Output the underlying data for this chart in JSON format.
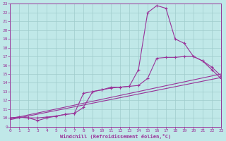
{
  "xlabel": "Windchill (Refroidissement éolien,°C)",
  "xlim": [
    0,
    23
  ],
  "ylim": [
    9,
    23
  ],
  "x_ticks": [
    0,
    1,
    2,
    3,
    4,
    5,
    6,
    7,
    8,
    9,
    10,
    11,
    12,
    13,
    14,
    15,
    16,
    17,
    18,
    19,
    20,
    21,
    22,
    23
  ],
  "y_ticks": [
    9,
    10,
    11,
    12,
    13,
    14,
    15,
    16,
    17,
    18,
    19,
    20,
    21,
    22,
    23
  ],
  "bg_color": "#c0e8e8",
  "grid_color": "#a0cccc",
  "line_color": "#993399",
  "line1_x": [
    0,
    1,
    2,
    3,
    4,
    5,
    6,
    7,
    8,
    9,
    10,
    11,
    12,
    13,
    14,
    15,
    16,
    17,
    18,
    19,
    20,
    21,
    22,
    23
  ],
  "line1_y": [
    10.0,
    10.1,
    10.0,
    9.7,
    10.0,
    10.2,
    10.4,
    10.5,
    11.2,
    13.0,
    13.2,
    13.5,
    13.5,
    13.6,
    15.5,
    22.0,
    22.8,
    22.5,
    19.0,
    18.5,
    17.0,
    16.5,
    15.5,
    14.5
  ],
  "line2_x": [
    0,
    1,
    2,
    3,
    4,
    5,
    6,
    7,
    8,
    9,
    10,
    11,
    12,
    13,
    14,
    15,
    16,
    17,
    18,
    19,
    20,
    21,
    22,
    23
  ],
  "line2_y": [
    10.0,
    10.1,
    10.0,
    10.0,
    10.1,
    10.2,
    10.4,
    10.5,
    12.8,
    13.0,
    13.2,
    13.4,
    13.5,
    13.6,
    13.7,
    14.5,
    16.8,
    16.9,
    16.9,
    17.0,
    17.0,
    16.5,
    15.8,
    14.8
  ],
  "line3_x": [
    0,
    23
  ],
  "line3_y": [
    9.8,
    14.6
  ],
  "line4_x": [
    0,
    23
  ],
  "line4_y": [
    9.9,
    15.0
  ],
  "figwidth": 3.2,
  "figheight": 2.0,
  "dpi": 100
}
